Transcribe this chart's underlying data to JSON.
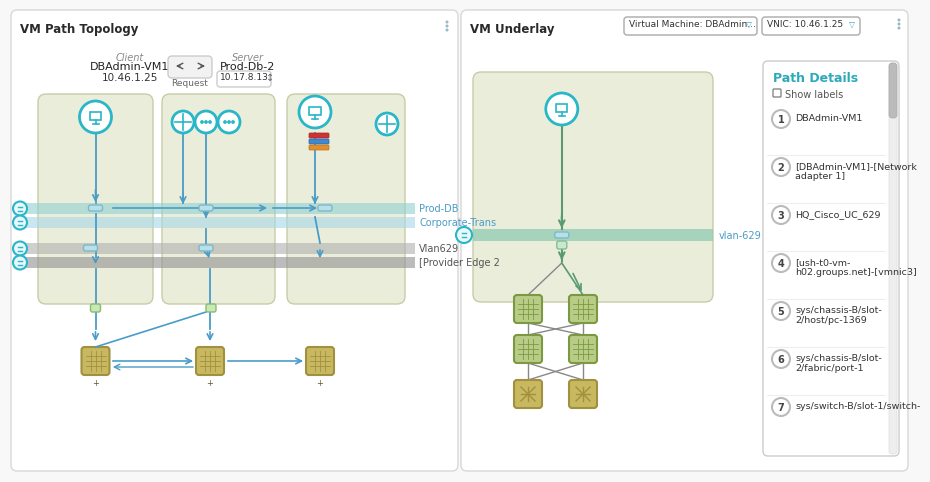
{
  "title_left": "VM Path Topology",
  "title_right": "VM Underlay",
  "bg_color": "#f8f8f8",
  "panel_bg": "#ffffff",
  "green_zone_bg": "#eaedda",
  "green_zone_border": "#c8cca8",
  "teal": "#29b6c8",
  "blue_link": "#4a9cc8",
  "gray_band_color": "#b0b0b0",
  "teal_band_color": "#90d0d0",
  "client_label": "Client",
  "client_name": "DBAdmin-VM1",
  "client_ip": "10.46.1.25",
  "server_label": "Server",
  "server_name": "Prod-Db-2",
  "server_ip": "10.17.8.13",
  "request_label": "Request",
  "band_labels": [
    "Prod-DB",
    "Corporate-Trans",
    "Vlan629",
    "[Provider Edge 2"
  ],
  "path_details_title": "Path Details",
  "show_labels": "Show labels",
  "path_items": [
    {
      "num": "1",
      "text": "DBAdmin-VM1"
    },
    {
      "num": "2",
      "text": "[DBAdmin-VM1]-[Network\nadapter 1]"
    },
    {
      "num": "3",
      "text": "HQ_Cisco_UC_629"
    },
    {
      "num": "4",
      "text": "[ush-t0-vm-\nh02.groups.net]-[vmnic3]"
    },
    {
      "num": "5",
      "text": "sys/chassis-B/slot-\n2/host/pc-1369"
    },
    {
      "num": "6",
      "text": "sys/chassis-B/slot-\n2/fabric/port-1"
    },
    {
      "num": "7",
      "text": "sys/switch-B/slot-1/switch-"
    }
  ],
  "vm_underlay_dd1": "Virtual Machine: DBAdmin...",
  "vm_underlay_dd2": "VNIC: 10.46.1.25",
  "vlan_label": "vlan-629",
  "dots_color": "#29b6c8",
  "scrollbar_color": "#cccccc"
}
